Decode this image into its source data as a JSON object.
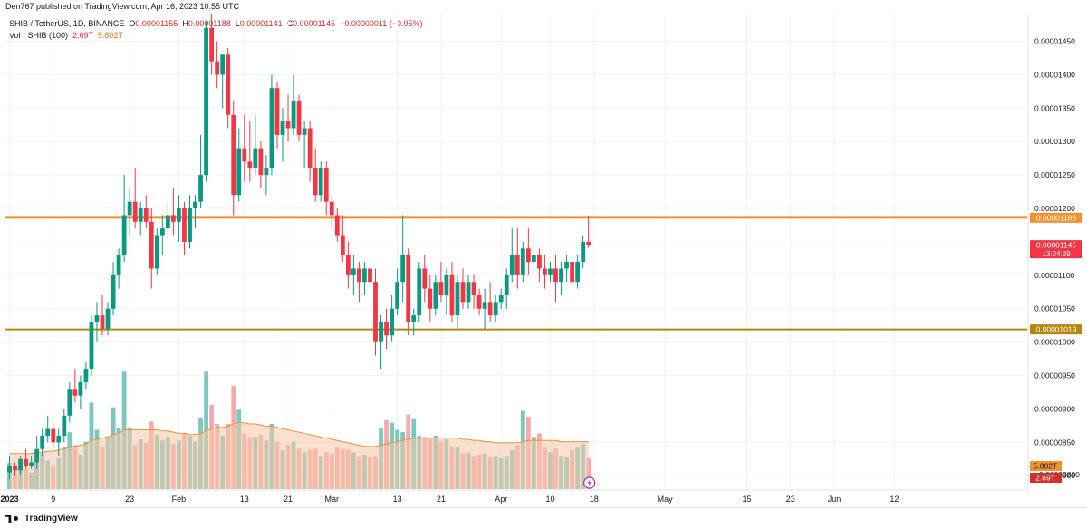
{
  "header": {
    "publisher_line": "Den767 published on TradingView.com, Apr 16, 2023 10:55 UTC"
  },
  "legend": {
    "symbol": "SHIB / TetherUS, 1D, BINANCE",
    "o_label": "O",
    "o_value": "0.00001155",
    "h_label": "H",
    "h_value": "0.00001188",
    "l_label": "L",
    "l_value": "0.00001141",
    "c_label": "C",
    "c_value": "0.00001145",
    "change": "−0.00000011 (−0.95%)",
    "vol_label": "Vol · SHIB (100)",
    "vol_value": "2.69T",
    "vol_ma_value": "5.802T"
  },
  "footer": {
    "logo_text": "TradingView"
  },
  "colors": {
    "up": "#089981",
    "down": "#f23645",
    "vol_up": "#7cc7bf",
    "vol_down": "#f7a9a9",
    "vol_ma_fill": "#f7c7a8",
    "resistance": "#f0922e",
    "support": "#b8860b",
    "last_price": "#f23645"
  },
  "chart_data": {
    "type": "candlestick",
    "y_axis": {
      "range": [
        7.8e-06,
        1.49e-05
      ],
      "ticks": [
        "0.00001450",
        "0.00001400",
        "0.00001350",
        "0.00001300",
        "0.00001250",
        "0.00001200",
        "0.00001100",
        "0.00001050",
        "0.00001000",
        "0.00000950",
        "0.00000900",
        "0.00000850",
        "0.00000800"
      ],
      "tick_values": [
        1.45e-05,
        1.4e-05,
        1.35e-05,
        1.3e-05,
        1.25e-05,
        1.2e-05,
        1.1e-05,
        1.05e-05,
        1e-05,
        9.5e-06,
        9e-06,
        8.5e-06,
        8e-06
      ]
    },
    "x_axis": {
      "ticks": [
        "2023",
        "9",
        "23",
        "Feb",
        "13",
        "21",
        "Mar",
        "13",
        "21",
        "Apr",
        "10",
        "18",
        "May",
        "15",
        "23",
        "Jun",
        "12"
      ],
      "tick_days": [
        1,
        9,
        23,
        32,
        44,
        52,
        60,
        72,
        80,
        91,
        100,
        108,
        121,
        136,
        144,
        152,
        163
      ]
    },
    "horizontal_lines": [
      {
        "label": "0.00001186",
        "value": 1.186e-05,
        "kind": "resistance"
      },
      {
        "label": "0.00001019",
        "value": 1.019e-05,
        "kind": "support"
      }
    ],
    "last_price": {
      "label": "0.00001145",
      "value": 1.145e-05,
      "countdown": "13:04:29"
    },
    "volume_labels": {
      "ma": "5.802T",
      "current": "2.69T",
      "axis_partial": "0.00000800"
    },
    "candles": [
      {
        "o": 8.05e-06,
        "h": 8.3e-06,
        "l": 7.95e-06,
        "c": 8.15e-06
      },
      {
        "o": 8.15e-06,
        "h": 8.2e-06,
        "l": 8e-06,
        "c": 8.08e-06
      },
      {
        "o": 8.08e-06,
        "h": 8.3e-06,
        "l": 8.02e-06,
        "c": 8.25e-06
      },
      {
        "o": 8.25e-06,
        "h": 8.4e-06,
        "l": 8.1e-06,
        "c": 8.15e-06
      },
      {
        "o": 8.15e-06,
        "h": 8.3e-06,
        "l": 8.1e-06,
        "c": 8.2e-06
      },
      {
        "o": 8.2e-06,
        "h": 8.6e-06,
        "l": 8.1e-06,
        "c": 8.4e-06
      },
      {
        "o": 8.4e-06,
        "h": 8.7e-06,
        "l": 8.3e-06,
        "c": 8.6e-06
      },
      {
        "o": 8.6e-06,
        "h": 8.9e-06,
        "l": 8.5e-06,
        "c": 8.7e-06
      },
      {
        "o": 8.7e-06,
        "h": 8.8e-06,
        "l": 8.4e-06,
        "c": 8.5e-06
      },
      {
        "o": 8.5e-06,
        "h": 8.7e-06,
        "l": 8.3e-06,
        "c": 8.6e-06
      },
      {
        "o": 8.6e-06,
        "h": 9e-06,
        "l": 8.5e-06,
        "c": 8.9e-06
      },
      {
        "o": 8.9e-06,
        "h": 9.4e-06,
        "l": 8.8e-06,
        "c": 9.3e-06
      },
      {
        "o": 9.3e-06,
        "h": 9.6e-06,
        "l": 9.1e-06,
        "c": 9.2e-06
      },
      {
        "o": 9.2e-06,
        "h": 9.5e-06,
        "l": 9e-06,
        "c": 9.4e-06
      },
      {
        "o": 9.4e-06,
        "h": 9.7e-06,
        "l": 9.3e-06,
        "c": 9.6e-06
      },
      {
        "o": 9.6e-06,
        "h": 1.04e-05,
        "l": 9.5e-06,
        "c": 1.03e-05
      },
      {
        "o": 1.03e-05,
        "h": 1.06e-05,
        "l": 1e-05,
        "c": 1.04e-05
      },
      {
        "o": 1.04e-05,
        "h": 1.07e-05,
        "l": 1.01e-05,
        "c": 1.02e-05
      },
      {
        "o": 1.02e-05,
        "h": 1.06e-05,
        "l": 1.01e-05,
        "c": 1.05e-05
      },
      {
        "o": 1.05e-05,
        "h": 1.12e-05,
        "l": 1.04e-05,
        "c": 1.1e-05
      },
      {
        "o": 1.1e-05,
        "h": 1.14e-05,
        "l": 1.08e-05,
        "c": 1.13e-05
      },
      {
        "o": 1.13e-05,
        "h": 1.25e-05,
        "l": 1.12e-05,
        "c": 1.19e-05
      },
      {
        "o": 1.19e-05,
        "h": 1.23e-05,
        "l": 1.16e-05,
        "c": 1.21e-05
      },
      {
        "o": 1.21e-05,
        "h": 1.26e-05,
        "l": 1.17e-05,
        "c": 1.18e-05
      },
      {
        "o": 1.18e-05,
        "h": 1.21e-05,
        "l": 1.16e-05,
        "c": 1.2e-05
      },
      {
        "o": 1.2e-05,
        "h": 1.22e-05,
        "l": 1.17e-05,
        "c": 1.18e-05
      },
      {
        "o": 1.18e-05,
        "h": 1.2e-05,
        "l": 1.08e-05,
        "c": 1.11e-05
      },
      {
        "o": 1.11e-05,
        "h": 1.17e-05,
        "l": 1.1e-05,
        "c": 1.16e-05
      },
      {
        "o": 1.16e-05,
        "h": 1.19e-05,
        "l": 1.13e-05,
        "c": 1.17e-05
      },
      {
        "o": 1.17e-05,
        "h": 1.21e-05,
        "l": 1.15e-05,
        "c": 1.19e-05
      },
      {
        "o": 1.19e-05,
        "h": 1.23e-05,
        "l": 1.16e-05,
        "c": 1.18e-05
      },
      {
        "o": 1.18e-05,
        "h": 1.22e-05,
        "l": 1.15e-05,
        "c": 1.2e-05
      },
      {
        "o": 1.2e-05,
        "h": 1.21e-05,
        "l": 1.13e-05,
        "c": 1.15e-05
      },
      {
        "o": 1.15e-05,
        "h": 1.22e-05,
        "l": 1.14e-05,
        "c": 1.2e-05
      },
      {
        "o": 1.2e-05,
        "h": 1.22e-05,
        "l": 1.17e-05,
        "c": 1.21e-05
      },
      {
        "o": 1.21e-05,
        "h": 1.31e-05,
        "l": 1.2e-05,
        "c": 1.25e-05
      },
      {
        "o": 1.25e-05,
        "h": 1.48e-05,
        "l": 1.24e-05,
        "c": 1.47e-05
      },
      {
        "o": 1.47e-05,
        "h": 1.49e-05,
        "l": 1.4e-05,
        "c": 1.42e-05
      },
      {
        "o": 1.42e-05,
        "h": 1.45e-05,
        "l": 1.38e-05,
        "c": 1.4e-05
      },
      {
        "o": 1.4e-05,
        "h": 1.43e-05,
        "l": 1.35e-05,
        "c": 1.43e-05
      },
      {
        "o": 1.43e-05,
        "h": 1.44e-05,
        "l": 1.32e-05,
        "c": 1.34e-05
      },
      {
        "o": 1.34e-05,
        "h": 1.36e-05,
        "l": 1.19e-05,
        "c": 1.22e-05
      },
      {
        "o": 1.22e-05,
        "h": 1.32e-05,
        "l": 1.21e-05,
        "c": 1.29e-05
      },
      {
        "o": 1.29e-05,
        "h": 1.34e-05,
        "l": 1.24e-05,
        "c": 1.27e-05
      },
      {
        "o": 1.27e-05,
        "h": 1.33e-05,
        "l": 1.24e-05,
        "c": 1.26e-05
      },
      {
        "o": 1.26e-05,
        "h": 1.34e-05,
        "l": 1.25e-05,
        "c": 1.29e-05
      },
      {
        "o": 1.29e-05,
        "h": 1.3e-05,
        "l": 1.23e-05,
        "c": 1.25e-05
      },
      {
        "o": 1.25e-05,
        "h": 1.28e-05,
        "l": 1.22e-05,
        "c": 1.26e-05
      },
      {
        "o": 1.26e-05,
        "h": 1.4e-05,
        "l": 1.25e-05,
        "c": 1.38e-05
      },
      {
        "o": 1.38e-05,
        "h": 1.39e-05,
        "l": 1.29e-05,
        "c": 1.31e-05
      },
      {
        "o": 1.31e-05,
        "h": 1.35e-05,
        "l": 1.27e-05,
        "c": 1.33e-05
      },
      {
        "o": 1.33e-05,
        "h": 1.37e-05,
        "l": 1.3e-05,
        "c": 1.32e-05
      },
      {
        "o": 1.32e-05,
        "h": 1.4e-05,
        "l": 1.31e-05,
        "c": 1.36e-05
      },
      {
        "o": 1.36e-05,
        "h": 1.37e-05,
        "l": 1.3e-05,
        "c": 1.31e-05
      },
      {
        "o": 1.31e-05,
        "h": 1.33e-05,
        "l": 1.26e-05,
        "c": 1.32e-05
      },
      {
        "o": 1.32e-05,
        "h": 1.33e-05,
        "l": 1.24e-05,
        "c": 1.26e-05
      },
      {
        "o": 1.26e-05,
        "h": 1.29e-05,
        "l": 1.21e-05,
        "c": 1.22e-05
      },
      {
        "o": 1.22e-05,
        "h": 1.27e-05,
        "l": 1.21e-05,
        "c": 1.26e-05
      },
      {
        "o": 1.26e-05,
        "h": 1.27e-05,
        "l": 1.19e-05,
        "c": 1.21e-05
      },
      {
        "o": 1.21e-05,
        "h": 1.22e-05,
        "l": 1.17e-05,
        "c": 1.19e-05
      },
      {
        "o": 1.19e-05,
        "h": 1.2e-05,
        "l": 1.15e-05,
        "c": 1.16e-05
      },
      {
        "o": 1.16e-05,
        "h": 1.19e-05,
        "l": 1.12e-05,
        "c": 1.13e-05
      },
      {
        "o": 1.13e-05,
        "h": 1.15e-05,
        "l": 1.08e-05,
        "c": 1.1e-05
      },
      {
        "o": 1.1e-05,
        "h": 1.13e-05,
        "l": 1.07e-05,
        "c": 1.11e-05
      },
      {
        "o": 1.11e-05,
        "h": 1.12e-05,
        "l": 1.06e-05,
        "c": 1.09e-05
      },
      {
        "o": 1.09e-05,
        "h": 1.12e-05,
        "l": 1.07e-05,
        "c": 1.11e-05
      },
      {
        "o": 1.11e-05,
        "h": 1.14e-05,
        "l": 1.08e-05,
        "c": 1.09e-05
      },
      {
        "o": 1.09e-05,
        "h": 1.11e-05,
        "l": 9.8e-06,
        "c": 1e-05
      },
      {
        "o": 1e-05,
        "h": 1.04e-05,
        "l": 9.6e-06,
        "c": 1.03e-05
      },
      {
        "o": 1.03e-05,
        "h": 1.05e-05,
        "l": 9.9e-06,
        "c": 1.01e-05
      },
      {
        "o": 1.01e-05,
        "h": 1.07e-05,
        "l": 1e-05,
        "c": 1.05e-05
      },
      {
        "o": 1.05e-05,
        "h": 1.11e-05,
        "l": 1.04e-05,
        "c": 1.09e-05
      },
      {
        "o": 1.09e-05,
        "h": 1.19e-05,
        "l": 1.06e-05,
        "c": 1.13e-05
      },
      {
        "o": 1.13e-05,
        "h": 1.14e-05,
        "l": 1.01e-05,
        "c": 1.03e-05
      },
      {
        "o": 1.03e-05,
        "h": 1.05e-05,
        "l": 1.01e-05,
        "c": 1.04e-05
      },
      {
        "o": 1.04e-05,
        "h": 1.12e-05,
        "l": 1.03e-05,
        "c": 1.11e-05
      },
      {
        "o": 1.11e-05,
        "h": 1.13e-05,
        "l": 1.06e-05,
        "c": 1.08e-05
      },
      {
        "o": 1.08e-05,
        "h": 1.1e-05,
        "l": 1.03e-05,
        "c": 1.05e-05
      },
      {
        "o": 1.05e-05,
        "h": 1.1e-05,
        "l": 1.04e-05,
        "c": 1.09e-05
      },
      {
        "o": 1.09e-05,
        "h": 1.12e-05,
        "l": 1.06e-05,
        "c": 1.07e-05
      },
      {
        "o": 1.07e-05,
        "h": 1.11e-05,
        "l": 1.04e-05,
        "c": 1.1e-05
      },
      {
        "o": 1.1e-05,
        "h": 1.12e-05,
        "l": 1.03e-05,
        "c": 1.04e-05
      },
      {
        "o": 1.04e-05,
        "h": 1.1e-05,
        "l": 1.02e-05,
        "c": 1.09e-05
      },
      {
        "o": 1.09e-05,
        "h": 1.11e-05,
        "l": 1.05e-05,
        "c": 1.06e-05
      },
      {
        "o": 1.06e-05,
        "h": 1.1e-05,
        "l": 1.05e-05,
        "c": 1.09e-05
      },
      {
        "o": 1.09e-05,
        "h": 1.1e-05,
        "l": 1.05e-05,
        "c": 1.07e-05
      },
      {
        "o": 1.07e-05,
        "h": 1.08e-05,
        "l": 1.04e-05,
        "c": 1.05e-05
      },
      {
        "o": 1.05e-05,
        "h": 1.08e-05,
        "l": 1.02e-05,
        "c": 1.06e-05
      },
      {
        "o": 1.06e-05,
        "h": 1.09e-05,
        "l": 1.03e-05,
        "c": 1.04e-05
      },
      {
        "o": 1.04e-05,
        "h": 1.07e-05,
        "l": 1.03e-05,
        "c": 1.06e-05
      },
      {
        "o": 1.06e-05,
        "h": 1.08e-05,
        "l": 1.05e-05,
        "c": 1.07e-05
      },
      {
        "o": 1.07e-05,
        "h": 1.11e-05,
        "l": 1.05e-05,
        "c": 1.1e-05
      },
      {
        "o": 1.1e-05,
        "h": 1.17e-05,
        "l": 1.09e-05,
        "c": 1.13e-05
      },
      {
        "o": 1.13e-05,
        "h": 1.17e-05,
        "l": 1.08e-05,
        "c": 1.1e-05
      },
      {
        "o": 1.1e-05,
        "h": 1.15e-05,
        "l": 1.09e-05,
        "c": 1.14e-05
      },
      {
        "o": 1.14e-05,
        "h": 1.17e-05,
        "l": 1.1e-05,
        "c": 1.12e-05
      },
      {
        "o": 1.12e-05,
        "h": 1.16e-05,
        "l": 1.1e-05,
        "c": 1.13e-05
      },
      {
        "o": 1.13e-05,
        "h": 1.14e-05,
        "l": 1.09e-05,
        "c": 1.11e-05
      },
      {
        "o": 1.11e-05,
        "h": 1.13e-05,
        "l": 1.08e-05,
        "c": 1.1e-05
      },
      {
        "o": 1.1e-05,
        "h": 1.12e-05,
        "l": 1.09e-05,
        "c": 1.11e-05
      },
      {
        "o": 1.11e-05,
        "h": 1.13e-05,
        "l": 1.06e-05,
        "c": 1.09e-05
      },
      {
        "o": 1.09e-05,
        "h": 1.12e-05,
        "l": 1.07e-05,
        "c": 1.11e-05
      },
      {
        "o": 1.11e-05,
        "h": 1.13e-05,
        "l": 1.09e-05,
        "c": 1.12e-05
      },
      {
        "o": 1.12e-05,
        "h": 1.13e-05,
        "l": 1.08e-05,
        "c": 1.09e-05
      },
      {
        "o": 1.09e-05,
        "h": 1.13e-05,
        "l": 1.08e-05,
        "c": 1.12e-05
      },
      {
        "o": 1.12e-05,
        "h": 1.16e-05,
        "l": 1.11e-05,
        "c": 1.15e-05
      },
      {
        "o": 1.15e-05,
        "h": 1.188e-05,
        "l": 1.141e-05,
        "c": 1.145e-05
      }
    ],
    "volumes": [
      0.22,
      0.14,
      0.2,
      0.17,
      0.14,
      0.25,
      0.3,
      0.24,
      0.2,
      0.26,
      0.35,
      0.48,
      0.37,
      0.29,
      0.4,
      0.73,
      0.5,
      0.36,
      0.44,
      0.69,
      0.52,
      0.99,
      0.52,
      0.37,
      0.42,
      0.39,
      0.57,
      0.46,
      0.41,
      0.44,
      0.38,
      0.41,
      0.47,
      0.45,
      0.4,
      0.6,
      0.99,
      0.71,
      0.55,
      0.45,
      0.55,
      0.87,
      0.67,
      0.47,
      0.44,
      0.44,
      0.46,
      0.41,
      0.55,
      0.4,
      0.33,
      0.37,
      0.4,
      0.34,
      0.31,
      0.33,
      0.34,
      0.28,
      0.31,
      0.3,
      0.35,
      0.34,
      0.33,
      0.31,
      0.28,
      0.29,
      0.27,
      0.28,
      0.51,
      0.58,
      0.56,
      0.5,
      0.48,
      0.63,
      0.59,
      0.45,
      0.44,
      0.43,
      0.45,
      0.4,
      0.42,
      0.36,
      0.35,
      0.3,
      0.31,
      0.28,
      0.29,
      0.3,
      0.27,
      0.28,
      0.26,
      0.28,
      0.33,
      0.37,
      0.66,
      0.61,
      0.44,
      0.47,
      0.35,
      0.31,
      0.34,
      0.28,
      0.27,
      0.33,
      0.35,
      0.38,
      0.26
    ],
    "volume_ma": [
      0.3,
      0.3,
      0.3,
      0.3,
      0.3,
      0.31,
      0.31,
      0.32,
      0.32,
      0.33,
      0.34,
      0.35,
      0.36,
      0.37,
      0.38,
      0.41,
      0.42,
      0.43,
      0.44,
      0.46,
      0.47,
      0.5,
      0.5,
      0.5,
      0.5,
      0.5,
      0.5,
      0.5,
      0.49,
      0.49,
      0.48,
      0.47,
      0.47,
      0.46,
      0.46,
      0.47,
      0.49,
      0.51,
      0.52,
      0.52,
      0.53,
      0.55,
      0.56,
      0.56,
      0.55,
      0.55,
      0.54,
      0.53,
      0.53,
      0.52,
      0.51,
      0.5,
      0.49,
      0.48,
      0.47,
      0.46,
      0.45,
      0.44,
      0.43,
      0.42,
      0.41,
      0.4,
      0.39,
      0.38,
      0.37,
      0.36,
      0.36,
      0.36,
      0.37,
      0.38,
      0.39,
      0.4,
      0.41,
      0.42,
      0.43,
      0.43,
      0.43,
      0.43,
      0.43,
      0.43,
      0.43,
      0.43,
      0.43,
      0.42,
      0.42,
      0.41,
      0.41,
      0.4,
      0.4,
      0.39,
      0.39,
      0.39,
      0.39,
      0.39,
      0.4,
      0.41,
      0.41,
      0.41,
      0.41,
      0.41,
      0.41,
      0.4,
      0.4,
      0.4,
      0.4,
      0.4,
      0.4
    ]
  }
}
